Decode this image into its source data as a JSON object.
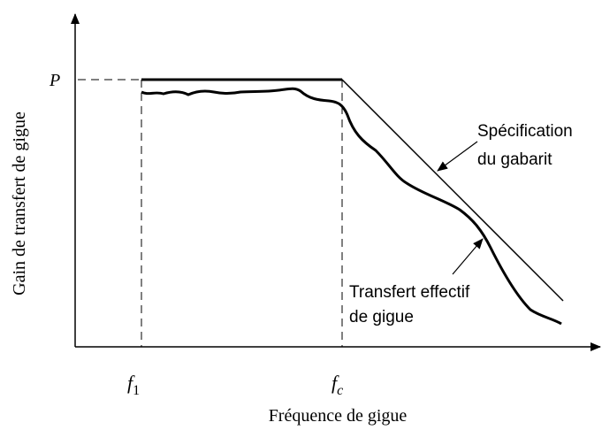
{
  "axes": {
    "x_label": "Fréquence de gigue",
    "y_label": "Gain de transfert de gigue"
  },
  "markers": {
    "p": "P",
    "f1": {
      "symbol": "f",
      "subscript": "1"
    },
    "fc": {
      "symbol": "f",
      "subscript": "c"
    }
  },
  "annotations": {
    "specification": [
      "Spécification",
      "du gabarit"
    ],
    "effective": [
      "Transfert effectif",
      "de gigue"
    ]
  }
}
